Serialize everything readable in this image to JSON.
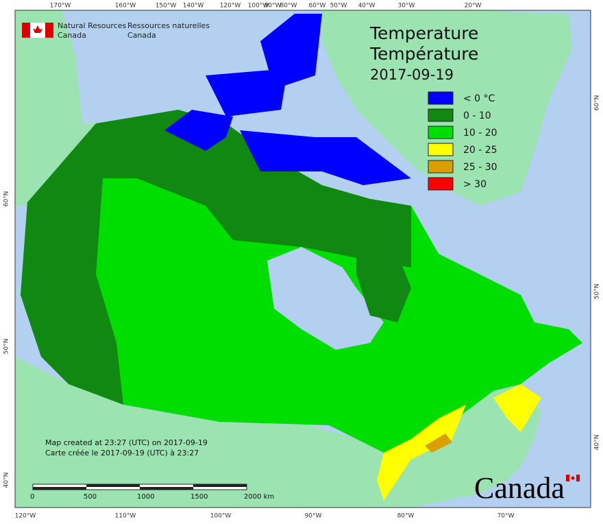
{
  "header": {
    "agency_en": [
      "Natural Resources",
      "Canada"
    ],
    "agency_fr": [
      "Ressources naturelles",
      "Canada"
    ]
  },
  "title": [
    "Temperature",
    "Température",
    "2017-09-19"
  ],
  "legend": [
    {
      "label": "< 0 °C",
      "color": "#0000ff"
    },
    {
      "label": "0 - 10",
      "color": "#118811"
    },
    {
      "label": "10 - 20",
      "color": "#00dd00"
    },
    {
      "label": "20 - 25",
      "color": "#ffff00"
    },
    {
      "label": "25 - 30",
      "color": "#d9a000"
    },
    {
      "label": "> 30",
      "color": "#ff0000"
    }
  ],
  "graticule": {
    "top": [
      "170°W",
      "160°W",
      "150°W",
      "140°W",
      "120°W",
      "100°W",
      "90°W",
      "80°W",
      "60°W",
      "50°W",
      "40°W",
      "30°W",
      "20°W"
    ],
    "bottom": [
      "120°W",
      "110°W",
      "100°W",
      "90°W",
      "80°W",
      "70°W"
    ],
    "left": [
      "60°N",
      "50°N",
      "40°N"
    ],
    "right": [
      "60°N",
      "50°N",
      "40°N"
    ]
  },
  "credits": [
    "Map created at 23:27 (UTC) on 2017-09-19",
    "Carte créée le 2017-09-19 (UTC) à 23:27"
  ],
  "scale_bar": [
    "0",
    "500",
    "1000",
    "1500",
    "2000 km"
  ],
  "wordmark": "Canada"
}
